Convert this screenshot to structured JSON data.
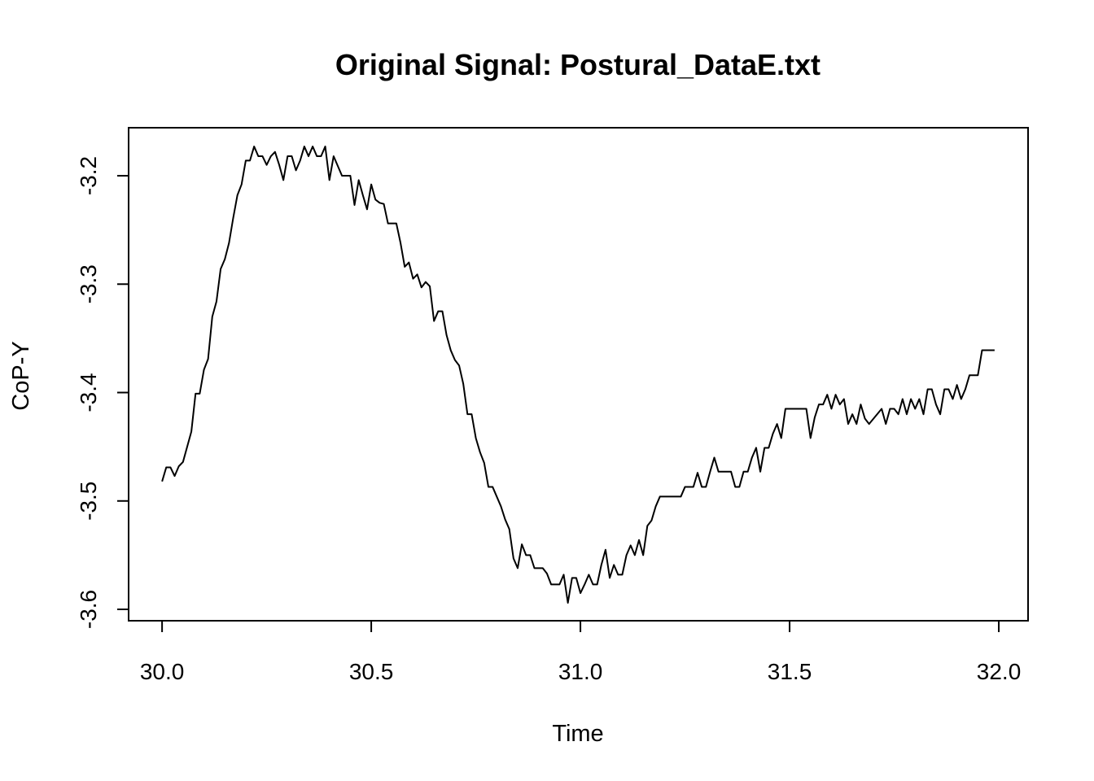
{
  "chart_data": {
    "type": "line",
    "title": "Original Signal: Postural_DataE.txt",
    "x_label": "Time",
    "y_label": "CoP-Y",
    "color": "#000000",
    "xlim": [
      29.92,
      32.07
    ],
    "ylim": [
      -3.6105,
      -3.1557
    ],
    "xticks": [
      {
        "value": 30.0,
        "label": "30.0"
      },
      30.5,
      {
        "value": 31.0,
        "label": "31.0"
      },
      31.5,
      {
        "value": 32.0,
        "label": "32.0"
      }
    ],
    "yticks": [
      -3.6,
      -3.5,
      -3.4,
      -3.3,
      -3.2
    ],
    "x": [
      30.0,
      30.01,
      30.02,
      30.03,
      30.04,
      30.05,
      30.07,
      30.08,
      30.09,
      30.1,
      30.11,
      30.12,
      30.13,
      30.14,
      30.15,
      30.16,
      30.17,
      30.18,
      30.19,
      30.2,
      30.21,
      30.22,
      30.23,
      30.24,
      30.25,
      30.26,
      30.27,
      30.28,
      30.29,
      30.3,
      30.31,
      30.32,
      30.33,
      30.34,
      30.35,
      30.36,
      30.37,
      30.38,
      30.39,
      30.4,
      30.41,
      30.42,
      30.43,
      30.45,
      30.46,
      30.47,
      30.48,
      30.49,
      30.5,
      30.51,
      30.52,
      30.53,
      30.54,
      30.56,
      30.57,
      30.58,
      30.59,
      30.6,
      30.61,
      30.62,
      30.63,
      30.64,
      30.65,
      30.66,
      30.67,
      30.68,
      30.69,
      30.7,
      30.71,
      30.72,
      30.73,
      30.74,
      30.75,
      30.76,
      30.77,
      30.78,
      30.79,
      30.8,
      30.81,
      30.82,
      30.83,
      30.84,
      30.85,
      30.86,
      30.87,
      30.88,
      30.89,
      30.91,
      30.92,
      30.93,
      30.95,
      30.96,
      30.97,
      30.98,
      30.99,
      31.0,
      31.01,
      31.02,
      31.03,
      31.04,
      31.05,
      31.06,
      31.07,
      31.08,
      31.09,
      31.1,
      31.11,
      31.12,
      31.13,
      31.14,
      31.15,
      31.16,
      31.17,
      31.18,
      31.19,
      31.2,
      31.24,
      31.25,
      31.27,
      31.28,
      31.29,
      31.3,
      31.31,
      31.32,
      31.33,
      31.36,
      31.37,
      31.38,
      31.39,
      31.4,
      31.41,
      31.42,
      31.43,
      31.44,
      31.45,
      31.46,
      31.47,
      31.48,
      31.49,
      31.5,
      31.54,
      31.55,
      31.56,
      31.57,
      31.58,
      31.59,
      31.6,
      31.61,
      31.62,
      31.63,
      31.64,
      31.65,
      31.66,
      31.67,
      31.68,
      31.69,
      31.72,
      31.73,
      31.74,
      31.75,
      31.76,
      31.77,
      31.78,
      31.79,
      31.8,
      31.81,
      31.82,
      31.83,
      31.84,
      31.85,
      31.86,
      31.87,
      31.88,
      31.89,
      31.9,
      31.91,
      31.92,
      31.93,
      31.95,
      31.96,
      31.99
    ],
    "values": [
      -3.482,
      -3.469,
      -3.469,
      -3.477,
      -3.468,
      -3.464,
      -3.436,
      -3.401,
      -3.401,
      -3.379,
      -3.369,
      -3.33,
      -3.316,
      -3.286,
      -3.277,
      -3.262,
      -3.239,
      -3.218,
      -3.208,
      -3.186,
      -3.186,
      -3.173,
      -3.182,
      -3.182,
      -3.19,
      -3.182,
      -3.178,
      -3.19,
      -3.204,
      -3.182,
      -3.182,
      -3.195,
      -3.186,
      -3.173,
      -3.182,
      -3.173,
      -3.182,
      -3.182,
      -3.173,
      -3.204,
      -3.182,
      -3.191,
      -3.2,
      -3.2,
      -3.227,
      -3.204,
      -3.218,
      -3.231,
      -3.208,
      -3.222,
      -3.225,
      -3.226,
      -3.244,
      -3.244,
      -3.262,
      -3.284,
      -3.28,
      -3.295,
      -3.291,
      -3.303,
      -3.298,
      -3.302,
      -3.334,
      -3.325,
      -3.325,
      -3.347,
      -3.361,
      -3.37,
      -3.375,
      -3.392,
      -3.42,
      -3.42,
      -3.442,
      -3.455,
      -3.465,
      -3.487,
      -3.487,
      -3.496,
      -3.505,
      -3.517,
      -3.526,
      -3.553,
      -3.562,
      -3.54,
      -3.55,
      -3.55,
      -3.562,
      -3.562,
      -3.567,
      -3.577,
      -3.577,
      -3.568,
      -3.594,
      -3.571,
      -3.571,
      -3.585,
      -3.577,
      -3.568,
      -3.577,
      -3.577,
      -3.559,
      -3.545,
      -3.571,
      -3.559,
      -3.568,
      -3.568,
      -3.55,
      -3.541,
      -3.55,
      -3.536,
      -3.55,
      -3.523,
      -3.518,
      -3.505,
      -3.496,
      -3.496,
      -3.496,
      -3.487,
      -3.487,
      -3.474,
      -3.487,
      -3.487,
      -3.473,
      -3.46,
      -3.473,
      -3.473,
      -3.487,
      -3.487,
      -3.473,
      -3.473,
      -3.46,
      -3.451,
      -3.473,
      -3.451,
      -3.451,
      -3.438,
      -3.429,
      -3.442,
      -3.415,
      -3.415,
      -3.415,
      -3.442,
      -3.423,
      -3.411,
      -3.411,
      -3.402,
      -3.415,
      -3.402,
      -3.411,
      -3.406,
      -3.429,
      -3.42,
      -3.429,
      -3.411,
      -3.424,
      -3.429,
      -3.415,
      -3.429,
      -3.415,
      -3.415,
      -3.42,
      -3.406,
      -3.42,
      -3.406,
      -3.415,
      -3.406,
      -3.42,
      -3.397,
      -3.397,
      -3.411,
      -3.42,
      -3.397,
      -3.397,
      -3.406,
      -3.393,
      -3.406,
      -3.397,
      -3.384,
      -3.384,
      -3.361,
      -3.361
    ]
  }
}
